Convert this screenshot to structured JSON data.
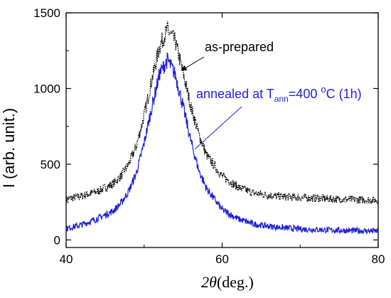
{
  "chart_data": {
    "type": "line",
    "x_axis": {
      "label_symbol": "2θ",
      "label_unit": "(deg.)",
      "range": [
        40,
        80
      ],
      "ticks": [
        40,
        60,
        80
      ]
    },
    "y_axis": {
      "label": "I (arb. unit.)",
      "range": [
        -50,
        1500
      ],
      "ticks": [
        0,
        500,
        1000,
        1500
      ]
    },
    "grid": false,
    "series": [
      {
        "name": "as-prepared",
        "color": "#000000",
        "style": "dotted",
        "x": [
          40,
          42,
          44,
          46,
          47,
          48,
          49,
          50,
          51,
          52,
          53,
          54,
          55,
          56,
          57,
          58,
          60,
          62,
          64,
          66,
          68,
          70,
          72,
          74,
          76,
          78,
          80
        ],
        "y": [
          270,
          290,
          320,
          370,
          420,
          500,
          620,
          820,
          1060,
          1280,
          1390,
          1310,
          1100,
          880,
          700,
          560,
          420,
          350,
          310,
          295,
          285,
          280,
          275,
          270,
          268,
          265,
          262
        ]
      },
      {
        "name": "annealed at T_ann=400 °C (1h)",
        "color": "#1f1fd8",
        "style": "solid",
        "x": [
          40,
          42,
          44,
          46,
          47,
          48,
          49,
          50,
          51,
          52,
          53,
          54,
          55,
          56,
          57,
          58,
          60,
          62,
          64,
          66,
          68,
          70,
          72,
          74,
          76,
          78,
          80
        ],
        "y": [
          75,
          100,
          140,
          190,
          240,
          320,
          440,
          640,
          880,
          1100,
          1190,
          1090,
          880,
          650,
          460,
          340,
          200,
          140,
          105,
          90,
          80,
          72,
          68,
          65,
          62,
          60,
          58
        ]
      }
    ],
    "annotations": [
      {
        "text": "as-prepared",
        "series": 0,
        "arrow_to": [
          54.8,
          1120
        ]
      },
      {
        "text_main": "annealed at T",
        "text_sub": "ann",
        "text_after": "=400 ",
        "text_sup": "o",
        "text_end": "C (1h)",
        "series": 1,
        "arrow_to": [
          56.5,
          600
        ]
      }
    ]
  }
}
